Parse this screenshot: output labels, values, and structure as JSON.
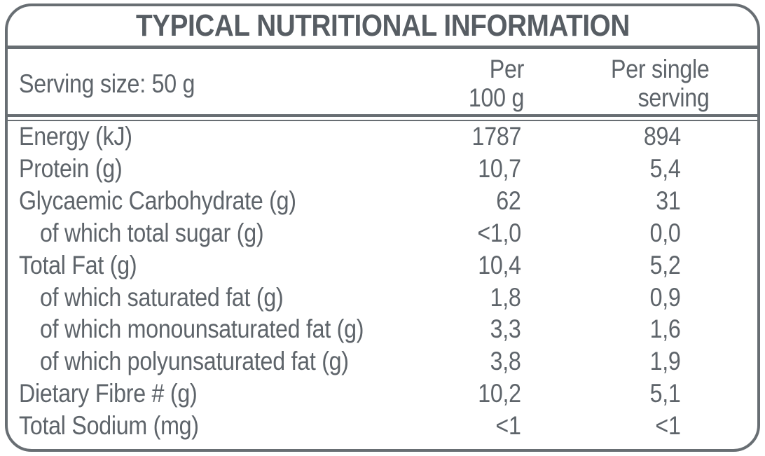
{
  "colors": {
    "border_gray": "#686e73",
    "text_gray": "#5e646a",
    "title_gray": "#575d63"
  },
  "label": {
    "title": "TYPICAL NUTRITIONAL INFORMATION",
    "header": {
      "serving_size": "Serving size: 50 g",
      "col_per_100": {
        "line1": "Per",
        "line2": "100 g"
      },
      "col_per_serving": {
        "line1": "Per single",
        "line2": "serving"
      }
    },
    "rows": [
      {
        "label": "Energy (kJ)",
        "per_100": "1787",
        "per_serving": "894",
        "indent": false
      },
      {
        "label": "Protein (g)",
        "per_100": "10,7",
        "per_serving": "5,4",
        "indent": false
      },
      {
        "label": "Glycaemic Carbohydrate (g)",
        "per_100": "62",
        "per_serving": "31",
        "indent": false
      },
      {
        "label": "of which total sugar (g)",
        "per_100": "<1,0",
        "per_serving": "0,0",
        "indent": true
      },
      {
        "label": "Total Fat (g)",
        "per_100": "10,4",
        "per_serving": "5,2",
        "indent": false
      },
      {
        "label": "of which saturated fat (g)",
        "per_100": "1,8",
        "per_serving": "0,9",
        "indent": true
      },
      {
        "label": "of which monounsaturated fat (g)",
        "per_100": "3,3",
        "per_serving": "1,6",
        "indent": true
      },
      {
        "label": "of which polyunsaturated fat (g)",
        "per_100": "3,8",
        "per_serving": "1,9",
        "indent": true
      },
      {
        "label": "Dietary Fibre # (g)",
        "per_100": "10,2",
        "per_serving": "5,1",
        "indent": false
      },
      {
        "label": "Total Sodium (mg)",
        "per_100": "<1",
        "per_serving": "<1",
        "indent": false
      }
    ]
  }
}
